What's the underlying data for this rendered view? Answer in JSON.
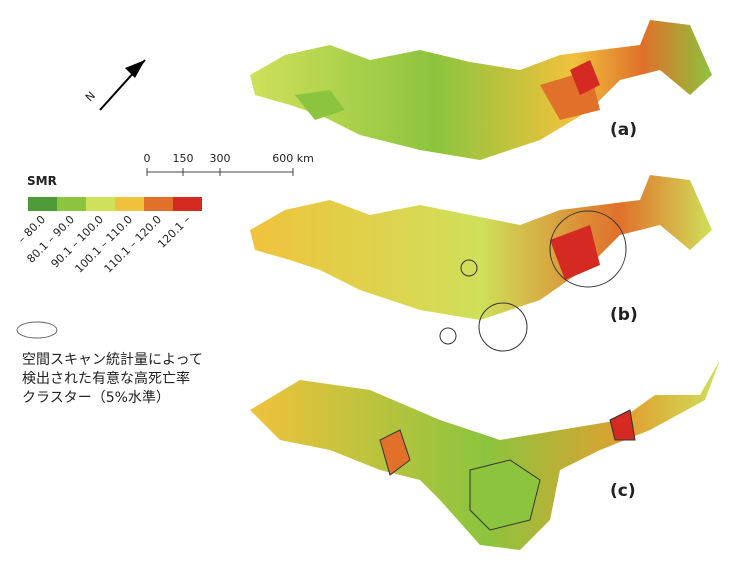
{
  "north_label": "N",
  "scale_bar": {
    "ticks": [
      "0",
      "150",
      "300",
      "600 km"
    ]
  },
  "legend": {
    "title": "SMR",
    "classes": [
      {
        "label": "– 80.0",
        "color": "#4f9a38"
      },
      {
        "label": "80.1 – 90.0",
        "color": "#8cc43e"
      },
      {
        "label": "90.1 – 100.0",
        "color": "#cfe05a"
      },
      {
        "label": "100.1 – 110.0",
        "color": "#f0c23c"
      },
      {
        "label": "110.1 – 120.0",
        "color": "#e0702a"
      },
      {
        "label": "120.1 –",
        "color": "#d42a22"
      }
    ]
  },
  "cluster_legend": {
    "lines": [
      "空間スキャン統計量によって",
      "検出された有意な高死亡率",
      "クラスター（5%水準）"
    ]
  },
  "panels": [
    "(a)",
    "(b)",
    "(c)"
  ]
}
